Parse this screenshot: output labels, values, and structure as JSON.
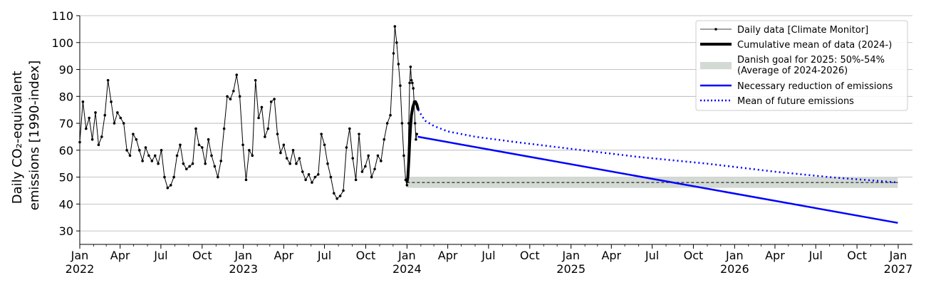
{
  "chart_data": {
    "type": "line",
    "ylabel_lines": [
      "Daily CO₂-equivalent",
      "emissions [1990-index]"
    ],
    "ylim": [
      25,
      110
    ],
    "yticks": [
      30,
      40,
      50,
      60,
      70,
      80,
      90,
      100,
      110
    ],
    "grid": "horizontal",
    "legend_position": "top-right",
    "x_ticks": [
      {
        "date": "2022-01-01",
        "label": "Jan",
        "year": "2022"
      },
      {
        "date": "2022-04-01",
        "label": "Apr"
      },
      {
        "date": "2022-07-01",
        "label": "Jul"
      },
      {
        "date": "2022-10-01",
        "label": "Oct"
      },
      {
        "date": "2023-01-01",
        "label": "Jan",
        "year": "2023"
      },
      {
        "date": "2023-04-01",
        "label": "Apr"
      },
      {
        "date": "2023-07-01",
        "label": "Jul"
      },
      {
        "date": "2023-10-01",
        "label": "Oct"
      },
      {
        "date": "2024-01-01",
        "label": "Jan",
        "year": "2024"
      },
      {
        "date": "2024-04-01",
        "label": "Apr"
      },
      {
        "date": "2024-07-01",
        "label": "Jul"
      },
      {
        "date": "2024-10-01",
        "label": "Oct"
      },
      {
        "date": "2025-01-01",
        "label": "Jan",
        "year": "2025"
      },
      {
        "date": "2025-04-01",
        "label": "Apr"
      },
      {
        "date": "2025-07-01",
        "label": "Jul"
      },
      {
        "date": "2025-10-01",
        "label": "Oct"
      },
      {
        "date": "2026-01-01",
        "label": "Jan",
        "year": "2026"
      },
      {
        "date": "2026-04-01",
        "label": "Apr"
      },
      {
        "date": "2026-07-01",
        "label": "Jul"
      },
      {
        "date": "2026-10-01",
        "label": "Oct"
      },
      {
        "date": "2027-01-01",
        "label": "Jan",
        "year": "2027"
      }
    ],
    "series": [
      {
        "name": "Daily data [Climate Monitor]",
        "style": "line-with-markers",
        "color": "#000000",
        "points": [
          [
            "2022-01-01",
            63
          ],
          [
            "2022-01-08",
            78
          ],
          [
            "2022-01-15",
            68
          ],
          [
            "2022-01-22",
            72
          ],
          [
            "2022-01-29",
            64
          ],
          [
            "2022-02-05",
            74
          ],
          [
            "2022-02-12",
            62
          ],
          [
            "2022-02-19",
            65
          ],
          [
            "2022-02-26",
            73
          ],
          [
            "2022-03-05",
            86
          ],
          [
            "2022-03-12",
            78
          ],
          [
            "2022-03-19",
            70
          ],
          [
            "2022-03-26",
            74
          ],
          [
            "2022-04-02",
            72
          ],
          [
            "2022-04-09",
            70
          ],
          [
            "2022-04-16",
            60
          ],
          [
            "2022-04-23",
            58
          ],
          [
            "2022-04-30",
            66
          ],
          [
            "2022-05-07",
            64
          ],
          [
            "2022-05-14",
            60
          ],
          [
            "2022-05-21",
            56
          ],
          [
            "2022-05-28",
            61
          ],
          [
            "2022-06-04",
            58
          ],
          [
            "2022-06-11",
            56
          ],
          [
            "2022-06-18",
            58
          ],
          [
            "2022-06-25",
            55
          ],
          [
            "2022-07-02",
            60
          ],
          [
            "2022-07-09",
            50
          ],
          [
            "2022-07-16",
            46
          ],
          [
            "2022-07-23",
            47
          ],
          [
            "2022-07-30",
            50
          ],
          [
            "2022-08-06",
            58
          ],
          [
            "2022-08-13",
            62
          ],
          [
            "2022-08-20",
            55
          ],
          [
            "2022-08-27",
            53
          ],
          [
            "2022-09-03",
            54
          ],
          [
            "2022-09-10",
            55
          ],
          [
            "2022-09-17",
            68
          ],
          [
            "2022-09-24",
            62
          ],
          [
            "2022-10-01",
            61
          ],
          [
            "2022-10-08",
            55
          ],
          [
            "2022-10-15",
            64
          ],
          [
            "2022-10-22",
            58
          ],
          [
            "2022-10-29",
            54
          ],
          [
            "2022-11-05",
            50
          ],
          [
            "2022-11-12",
            56
          ],
          [
            "2022-11-19",
            68
          ],
          [
            "2022-11-26",
            80
          ],
          [
            "2022-12-03",
            79
          ],
          [
            "2022-12-10",
            82
          ],
          [
            "2022-12-17",
            88
          ],
          [
            "2022-12-24",
            80
          ],
          [
            "2022-12-31",
            62
          ],
          [
            "2023-01-07",
            49
          ],
          [
            "2023-01-14",
            60
          ],
          [
            "2023-01-21",
            58
          ],
          [
            "2023-01-28",
            86
          ],
          [
            "2023-02-04",
            72
          ],
          [
            "2023-02-11",
            76
          ],
          [
            "2023-02-18",
            65
          ],
          [
            "2023-02-25",
            68
          ],
          [
            "2023-03-04",
            78
          ],
          [
            "2023-03-11",
            79
          ],
          [
            "2023-03-18",
            66
          ],
          [
            "2023-03-25",
            59
          ],
          [
            "2023-04-01",
            62
          ],
          [
            "2023-04-08",
            57
          ],
          [
            "2023-04-15",
            55
          ],
          [
            "2023-04-22",
            60
          ],
          [
            "2023-04-29",
            55
          ],
          [
            "2023-05-06",
            57
          ],
          [
            "2023-05-13",
            52
          ],
          [
            "2023-05-20",
            49
          ],
          [
            "2023-05-27",
            51
          ],
          [
            "2023-06-03",
            48
          ],
          [
            "2023-06-10",
            50
          ],
          [
            "2023-06-17",
            51
          ],
          [
            "2023-06-24",
            66
          ],
          [
            "2023-07-01",
            62
          ],
          [
            "2023-07-08",
            55
          ],
          [
            "2023-07-15",
            50
          ],
          [
            "2023-07-22",
            44
          ],
          [
            "2023-07-29",
            42
          ],
          [
            "2023-08-05",
            43
          ],
          [
            "2023-08-12",
            45
          ],
          [
            "2023-08-19",
            61
          ],
          [
            "2023-08-26",
            68
          ],
          [
            "2023-09-02",
            57
          ],
          [
            "2023-09-09",
            49
          ],
          [
            "2023-09-16",
            66
          ],
          [
            "2023-09-23",
            52
          ],
          [
            "2023-09-30",
            54
          ],
          [
            "2023-10-07",
            58
          ],
          [
            "2023-10-14",
            50
          ],
          [
            "2023-10-21",
            53
          ],
          [
            "2023-10-28",
            58
          ],
          [
            "2023-11-04",
            56
          ],
          [
            "2023-11-11",
            64
          ],
          [
            "2023-11-18",
            70
          ],
          [
            "2023-11-25",
            73
          ],
          [
            "2023-12-02",
            96
          ],
          [
            "2023-12-05",
            106
          ],
          [
            "2023-12-09",
            100
          ],
          [
            "2023-12-13",
            92
          ],
          [
            "2023-12-17",
            84
          ],
          [
            "2023-12-21",
            70
          ],
          [
            "2023-12-25",
            58
          ],
          [
            "2023-12-29",
            49
          ],
          [
            "2024-01-01",
            47
          ],
          [
            "2024-01-03",
            52
          ],
          [
            "2024-01-05",
            70
          ],
          [
            "2024-01-07",
            85
          ],
          [
            "2024-01-09",
            91
          ],
          [
            "2024-01-11",
            86
          ],
          [
            "2024-01-13",
            85
          ],
          [
            "2024-01-15",
            83
          ],
          [
            "2024-01-17",
            78
          ],
          [
            "2024-01-19",
            70
          ],
          [
            "2024-01-21",
            64
          ],
          [
            "2024-01-23",
            66
          ]
        ]
      },
      {
        "name": "Cumulative mean of data (2024-)",
        "style": "thick-line",
        "color": "#000000",
        "points": [
          [
            "2024-01-01",
            48
          ],
          [
            "2024-01-03",
            50
          ],
          [
            "2024-01-05",
            56
          ],
          [
            "2024-01-07",
            63
          ],
          [
            "2024-01-09",
            69
          ],
          [
            "2024-01-11",
            73
          ],
          [
            "2024-01-14",
            76
          ],
          [
            "2024-01-17",
            77.5
          ],
          [
            "2024-01-20",
            78
          ],
          [
            "2024-01-23",
            77
          ],
          [
            "2024-01-26",
            75
          ]
        ]
      },
      {
        "name": "Necessary reduction of emissions",
        "style": "solid-line",
        "color": "#0000ff",
        "points": [
          [
            "2024-01-25",
            65
          ],
          [
            "2026-12-31",
            33
          ]
        ]
      },
      {
        "name": "Mean of future emissions",
        "style": "dotted-line",
        "color": "#0000ff",
        "points": [
          [
            "2024-01-26",
            75
          ],
          [
            "2024-02-10",
            71
          ],
          [
            "2024-03-01",
            69
          ],
          [
            "2024-04-01",
            67
          ],
          [
            "2024-06-01",
            65
          ],
          [
            "2024-09-01",
            63
          ],
          [
            "2025-01-01",
            60.5
          ],
          [
            "2025-06-01",
            57.5
          ],
          [
            "2025-11-01",
            55
          ],
          [
            "2026-04-01",
            52
          ],
          [
            "2026-08-01",
            50
          ],
          [
            "2026-12-31",
            48
          ]
        ]
      }
    ],
    "band": {
      "name": "Danish goal for 2025: 50%-54%",
      "name_line2": "(Average of 2024-2026)",
      "x": [
        "2024-01-01",
        "2026-12-31"
      ],
      "y": [
        46,
        50
      ],
      "midline": 48,
      "color": "#d3d9d3"
    }
  }
}
